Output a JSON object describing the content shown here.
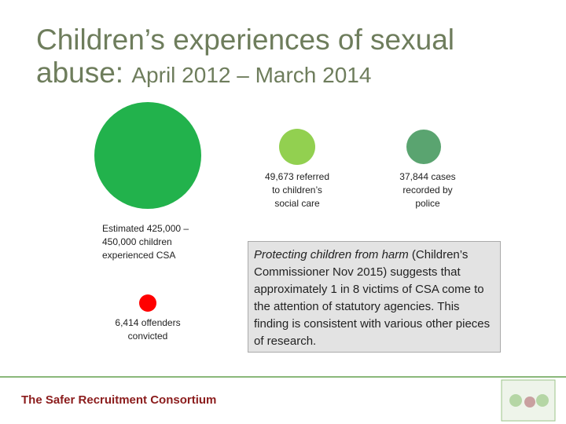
{
  "title": {
    "main": "Children’s experiences of sexual",
    "line2": "abuse:",
    "period": "April 2012 – March 2014"
  },
  "circles": [
    {
      "label_lines": [
        "Estimated 425,000 –",
        "450,000 children",
        "experienced CSA"
      ]
    },
    {
      "label_lines": [
        "49,673 referred",
        "to children’s",
        "social care"
      ]
    },
    {
      "label_lines": [
        "37,844 cases",
        "recorded by",
        "police"
      ]
    },
    {
      "label_lines": [
        "6,414 offenders",
        "convicted"
      ]
    }
  ],
  "box": {
    "italic": "Protecting children from harm",
    "text": " (Children’s Commissioner Nov 2015) suggests that approximately 1 in 8 victims of CSA come to the attention of statutory agencies. This finding is consistent with various other pieces of research."
  },
  "footer": "The Safer Recruitment Consortium"
}
